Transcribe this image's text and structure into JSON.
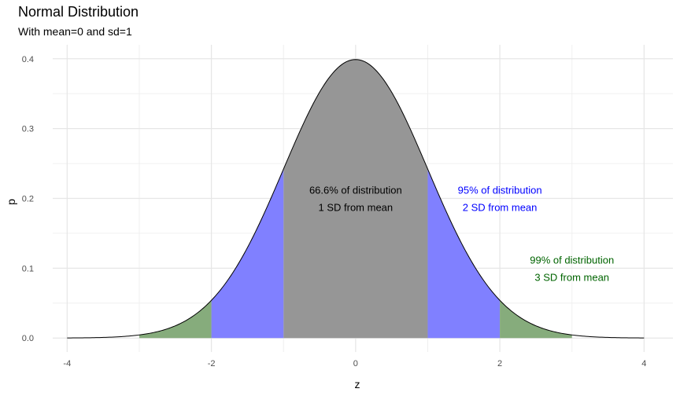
{
  "chart_data": {
    "type": "area",
    "title": "Normal Distribution",
    "subtitle": "With mean=0 and sd=1",
    "xlabel": "z",
    "ylabel": "p",
    "xlim": [
      -4.2,
      4.4
    ],
    "ylim": [
      -0.02,
      0.42
    ],
    "x_ticks": [
      -4,
      -2,
      0,
      2,
      4
    ],
    "x_tick_labels": [
      "-4",
      "-2",
      "0",
      "2",
      "4"
    ],
    "y_ticks": [
      0.0,
      0.1,
      0.2,
      0.3,
      0.4
    ],
    "y_tick_labels": [
      "0.0",
      "0.1",
      "0.2",
      "0.3",
      "0.4"
    ],
    "grid": true,
    "curve": {
      "distribution": "normal",
      "mean": 0,
      "sd": 1,
      "x_range": [
        -4,
        4
      ],
      "color": "#000000"
    },
    "bands": [
      {
        "name": "within 1 SD",
        "from": -1,
        "to": 1,
        "color": "#969696"
      },
      {
        "name": "1 to 2 SD lower",
        "from": -2,
        "to": -1,
        "color": "#8080ff"
      },
      {
        "name": "1 to 2 SD upper",
        "from": 1,
        "to": 2,
        "color": "#8080ff"
      },
      {
        "name": "2 to 3 SD lower",
        "from": -3,
        "to": -2,
        "color": "#86ac7c"
      },
      {
        "name": "2 to 3 SD upper",
        "from": 2,
        "to": 3,
        "color": "#86ac7c"
      }
    ],
    "annotations": [
      {
        "x": 0,
        "y": 0.2,
        "lines": [
          "66.6% of distribution",
          "1 SD from mean"
        ],
        "color": "#000000"
      },
      {
        "x": 2,
        "y": 0.2,
        "lines": [
          "95% of distribution",
          "2 SD from mean"
        ],
        "color": "#0000ff"
      },
      {
        "x": 3,
        "y": 0.1,
        "lines": [
          "99% of distribution",
          "3 SD from mean"
        ],
        "color": "#006400"
      }
    ]
  }
}
